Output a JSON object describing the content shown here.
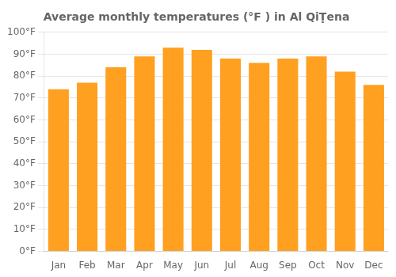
{
  "chart_data": {
    "type": "bar",
    "title": "Average monthly temperatures (°F ) in Al QiṬena",
    "categories": [
      "Jan",
      "Feb",
      "Mar",
      "Apr",
      "May",
      "Jun",
      "Jul",
      "Aug",
      "Sep",
      "Oct",
      "Nov",
      "Dec"
    ],
    "values": [
      74,
      77,
      84,
      89,
      93,
      92,
      88,
      86,
      88,
      89,
      82,
      76
    ],
    "color": "#FFA020",
    "ylim": [
      0,
      100
    ],
    "yticks": [
      {
        "value": 0,
        "label": "0°F"
      },
      {
        "value": 10,
        "label": "10°F"
      },
      {
        "value": 20,
        "label": "20°F"
      },
      {
        "value": 30,
        "label": "30°F"
      },
      {
        "value": 40,
        "label": "40°F"
      },
      {
        "value": 50,
        "label": "50°F"
      },
      {
        "value": 60,
        "label": "60°F"
      },
      {
        "value": 70,
        "label": "70°F"
      },
      {
        "value": 80,
        "label": "80°F"
      },
      {
        "value": 90,
        "label": "90°F"
      },
      {
        "value": 100,
        "label": "100°F"
      }
    ],
    "grid": true
  }
}
